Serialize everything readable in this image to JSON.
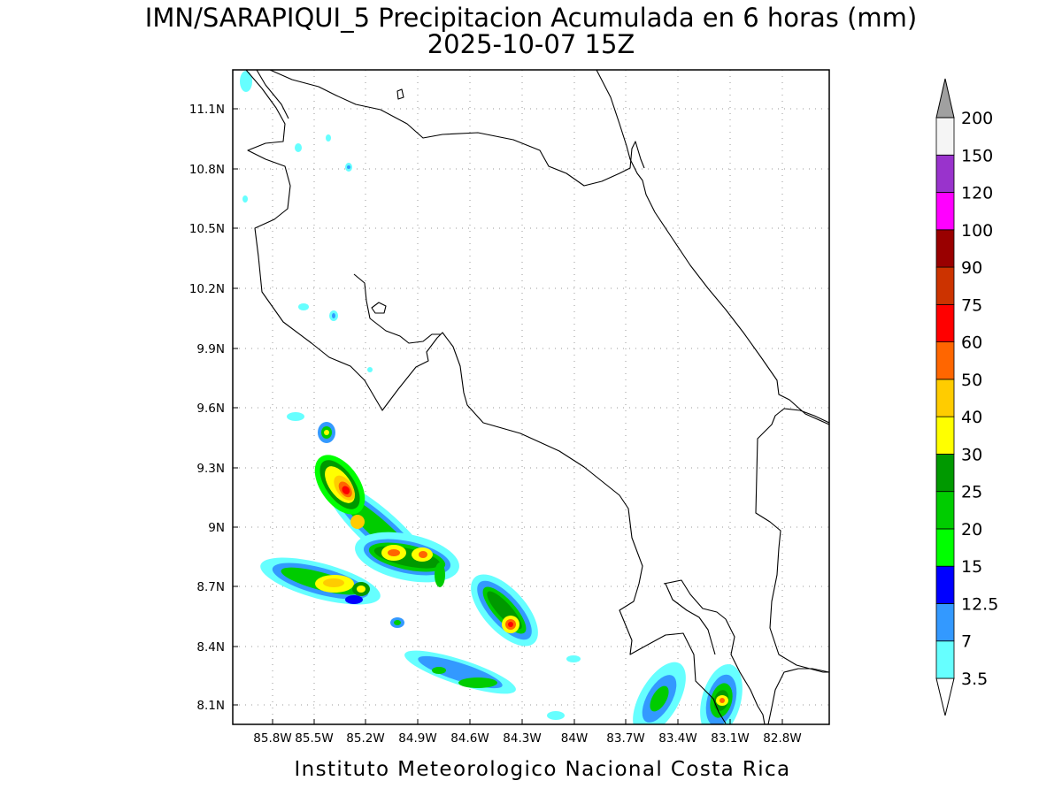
{
  "title": {
    "line1": "IMN/SARAPIQUI_5 Precipitacion Acumulada en 6 horas (mm)",
    "line2": "2025-10-07 15Z"
  },
  "footer": "Instituto Meteorologico Nacional Costa Rica",
  "axes": {
    "lon_ticks": [
      "85.8W",
      "85.5W",
      "85.2W",
      "84.9W",
      "84.6W",
      "84.3W",
      "84W",
      "83.7W",
      "83.4W",
      "83.1W",
      "82.8W"
    ],
    "lat_ticks": [
      "11.1N",
      "10.8N",
      "10.5N",
      "10.2N",
      "9.9N",
      "9.6N",
      "9.3N",
      "9N",
      "8.7N",
      "8.4N",
      "8.1N"
    ]
  },
  "legend": {
    "labels": [
      "3.5",
      "7",
      "12.5",
      "15",
      "20",
      "25",
      "30",
      "40",
      "50",
      "60",
      "75",
      "90",
      "100",
      "120",
      "150",
      "200"
    ],
    "colors": [
      "#66ffff",
      "#3399ff",
      "#0000ff",
      "#00ff00",
      "#00cc00",
      "#009900",
      "#ffff00",
      "#ffcc00",
      "#ff6600",
      "#ff0000",
      "#cc3300",
      "#990000",
      "#ff00ff",
      "#9933cc",
      "#f5f5f5",
      "#a0a0a0"
    ]
  }
}
